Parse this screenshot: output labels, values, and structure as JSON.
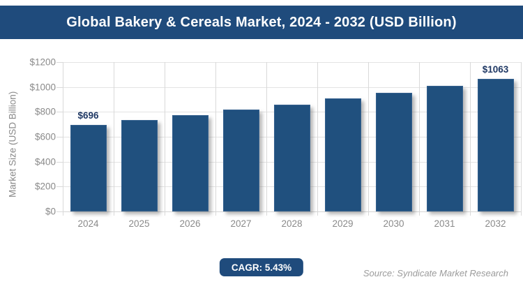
{
  "header": {
    "title": "Global Bakery & Cereals Market, 2024 - 2032 (USD Billion)"
  },
  "chart_data": {
    "type": "bar",
    "title": "Global Bakery & Cereals Market, 2024 - 2032 (USD Billion)",
    "categories": [
      "2024",
      "2025",
      "2026",
      "2027",
      "2028",
      "2029",
      "2030",
      "2031",
      "2032"
    ],
    "values": [
      696,
      734,
      774,
      816,
      860,
      907,
      956,
      1008,
      1063
    ],
    "bar_value_labels": [
      "$696",
      null,
      null,
      null,
      null,
      null,
      null,
      null,
      "$1063"
    ],
    "xlabel": "",
    "ylabel": "Market Size (USD Billion)",
    "ylim": [
      0,
      1200
    ],
    "y_tick_step": 200,
    "y_tick_labels_top_to_bottom": [
      "$1200",
      "$1000",
      "$800",
      "$600",
      "$400",
      "$200",
      "$0"
    ],
    "grid": true,
    "legend_position": "none",
    "cagr_percent": 5.43
  },
  "footer": {
    "cagr_label": "CAGR: 5.43%",
    "source": "Source: Syndicate Market Research"
  },
  "colors": {
    "banner": "#1f4b7c",
    "bar": "#20507e",
    "axis_text": "#8a8a8a",
    "data_label": "#1f3864",
    "grid_horizontal": "#e3e3e3",
    "grid_vertical": "#d9d9d9",
    "source_text": "#9b9b9b",
    "title_text": "#ffffff",
    "cagr_text": "#ffffff"
  }
}
